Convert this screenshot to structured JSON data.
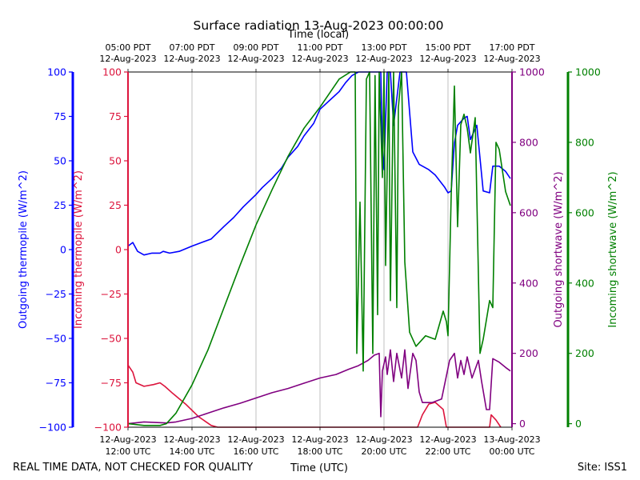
{
  "title": "Surface radiation 13-Aug-2023 00:00:00",
  "footer_left": "REAL TIME DATA, NOT CHECKED FOR QUALITY",
  "footer_right": "Site: ISS1",
  "colors": {
    "outgoing_thermopile": "#0000ff",
    "incoming_thermopile": "#dc143c",
    "outgoing_shortwave": "#800080",
    "incoming_shortwave": "#008000",
    "grid": "#b0b0b0"
  },
  "chart_data": {
    "type": "line",
    "title": "Surface radiation 13-Aug-2023 00:00:00",
    "xlabel": "Time (UTC)",
    "xlabel_top": "Time (local)",
    "xlim_hours_utc": [
      0,
      12
    ],
    "x_ticks_utc": [
      {
        "h": 0,
        "date": "12-Aug-2023",
        "time": "12:00 UTC"
      },
      {
        "h": 2,
        "date": "12-Aug-2023",
        "time": "14:00 UTC"
      },
      {
        "h": 4,
        "date": "12-Aug-2023",
        "time": "16:00 UTC"
      },
      {
        "h": 6,
        "date": "12-Aug-2023",
        "time": "18:00 UTC"
      },
      {
        "h": 8,
        "date": "12-Aug-2023",
        "time": "20:00 UTC"
      },
      {
        "h": 10,
        "date": "12-Aug-2023",
        "time": "22:00 UTC"
      },
      {
        "h": 12,
        "date": "13-Aug-2023",
        "time": "00:00 UTC"
      }
    ],
    "x_ticks_local": [
      {
        "h": 0,
        "time": "05:00 PDT",
        "date": "12-Aug-2023"
      },
      {
        "h": 2,
        "time": "07:00 PDT",
        "date": "12-Aug-2023"
      },
      {
        "h": 4,
        "time": "09:00 PDT",
        "date": "12-Aug-2023"
      },
      {
        "h": 6,
        "time": "11:00 PDT",
        "date": "12-Aug-2023"
      },
      {
        "h": 8,
        "time": "13:00 PDT",
        "date": "12-Aug-2023"
      },
      {
        "h": 10,
        "time": "15:00 PDT",
        "date": "12-Aug-2023"
      },
      {
        "h": 12,
        "time": "17:00 PDT",
        "date": "12-Aug-2023"
      }
    ],
    "axes": [
      {
        "id": "outgoing_thermopile",
        "label": "Outgoing thermopile (W/m^2)",
        "ylim": [
          -100,
          100
        ],
        "ticks": [
          -100,
          -75,
          -50,
          -25,
          0,
          25,
          50,
          75,
          100
        ]
      },
      {
        "id": "incoming_thermopile",
        "label": "Incoming thermopile (W/m^2)",
        "ylim": [
          -100,
          100
        ],
        "ticks": [
          -100,
          -75,
          -50,
          -25,
          0,
          25,
          50,
          75,
          100
        ]
      },
      {
        "id": "outgoing_shortwave",
        "label": "Outgoing shortwave (W/m^2)",
        "ylim": [
          -10,
          1000
        ],
        "ticks": [
          0,
          200,
          400,
          600,
          800,
          1000
        ]
      },
      {
        "id": "incoming_shortwave",
        "label": "Incoming shortwave (W/m^2)",
        "ylim": [
          -10,
          1000
        ],
        "ticks": [
          0,
          200,
          400,
          600,
          800,
          1000
        ]
      }
    ],
    "series": [
      {
        "name": "Outgoing thermopile",
        "axis": "outgoing_thermopile",
        "points": [
          [
            0,
            2
          ],
          [
            0.15,
            4
          ],
          [
            0.3,
            -1
          ],
          [
            0.5,
            -3
          ],
          [
            0.75,
            -2
          ],
          [
            1,
            -2
          ],
          [
            1.1,
            -1
          ],
          [
            1.3,
            -2
          ],
          [
            1.6,
            -1
          ],
          [
            2,
            2
          ],
          [
            2.3,
            4
          ],
          [
            2.6,
            6
          ],
          [
            3,
            13
          ],
          [
            3.3,
            18
          ],
          [
            3.6,
            24
          ],
          [
            4,
            31
          ],
          [
            4.2,
            35
          ],
          [
            4.5,
            40
          ],
          [
            4.8,
            46
          ],
          [
            5,
            52
          ],
          [
            5.3,
            58
          ],
          [
            5.5,
            64
          ],
          [
            5.8,
            71
          ],
          [
            6,
            79
          ],
          [
            6.3,
            84
          ],
          [
            6.6,
            89
          ],
          [
            6.8,
            94
          ],
          [
            7,
            98
          ],
          [
            7.2,
            100
          ],
          [
            7.5,
            100
          ],
          [
            7.9,
            100
          ],
          [
            7.95,
            57
          ],
          [
            8,
            45
          ],
          [
            8.1,
            100
          ],
          [
            8.2,
            100
          ],
          [
            8.3,
            70
          ],
          [
            8.5,
            100
          ],
          [
            8.7,
            100
          ],
          [
            8.9,
            55
          ],
          [
            9.1,
            48
          ],
          [
            9.4,
            45
          ],
          [
            9.6,
            42
          ],
          [
            9.9,
            35
          ],
          [
            10,
            32
          ],
          [
            10.1,
            33
          ],
          [
            10.2,
            60
          ],
          [
            10.3,
            70
          ],
          [
            10.5,
            74
          ],
          [
            10.6,
            75
          ],
          [
            10.7,
            62
          ],
          [
            10.9,
            70
          ],
          [
            11.1,
            33
          ],
          [
            11.3,
            32
          ],
          [
            11.4,
            47
          ],
          [
            11.6,
            47
          ],
          [
            11.8,
            44
          ],
          [
            11.95,
            40
          ]
        ]
      },
      {
        "name": "Incoming thermopile",
        "axis": "incoming_thermopile",
        "points": [
          [
            0,
            -65
          ],
          [
            0.15,
            -69
          ],
          [
            0.25,
            -75
          ],
          [
            0.5,
            -77
          ],
          [
            0.8,
            -76
          ],
          [
            1,
            -75
          ],
          [
            1.15,
            -77
          ],
          [
            1.4,
            -81
          ],
          [
            1.8,
            -87
          ],
          [
            2.2,
            -94
          ],
          [
            2.6,
            -99
          ],
          [
            2.8,
            -100
          ],
          [
            9.05,
            -100
          ],
          [
            9.2,
            -93
          ],
          [
            9.4,
            -87
          ],
          [
            9.6,
            -86
          ],
          [
            9.85,
            -90
          ],
          [
            9.95,
            -100
          ],
          [
            11.3,
            -100
          ],
          [
            11.35,
            -93
          ],
          [
            11.5,
            -96
          ],
          [
            11.65,
            -100
          ]
        ]
      },
      {
        "name": "Outgoing shortwave",
        "axis": "outgoing_shortwave",
        "points": [
          [
            0,
            0
          ],
          [
            0.5,
            5
          ],
          [
            1.2,
            2
          ],
          [
            1.5,
            5
          ],
          [
            2,
            15
          ],
          [
            2.5,
            30
          ],
          [
            3,
            45
          ],
          [
            3.5,
            58
          ],
          [
            4,
            73
          ],
          [
            4.5,
            88
          ],
          [
            5,
            100
          ],
          [
            5.5,
            115
          ],
          [
            6,
            130
          ],
          [
            6.5,
            140
          ],
          [
            6.9,
            155
          ],
          [
            7.2,
            165
          ],
          [
            7.4,
            175
          ],
          [
            7.5,
            180
          ],
          [
            7.7,
            195
          ],
          [
            7.85,
            200
          ],
          [
            7.9,
            20
          ],
          [
            7.95,
            150
          ],
          [
            8.05,
            190
          ],
          [
            8.1,
            140
          ],
          [
            8.2,
            210
          ],
          [
            8.3,
            120
          ],
          [
            8.4,
            200
          ],
          [
            8.55,
            130
          ],
          [
            8.65,
            210
          ],
          [
            8.75,
            100
          ],
          [
            8.9,
            200
          ],
          [
            9,
            180
          ],
          [
            9.1,
            90
          ],
          [
            9.2,
            60
          ],
          [
            9.5,
            60
          ],
          [
            9.8,
            70
          ],
          [
            10.05,
            180
          ],
          [
            10.2,
            200
          ],
          [
            10.3,
            130
          ],
          [
            10.4,
            180
          ],
          [
            10.5,
            140
          ],
          [
            10.6,
            190
          ],
          [
            10.75,
            130
          ],
          [
            10.95,
            180
          ],
          [
            11.05,
            120
          ],
          [
            11.2,
            40
          ],
          [
            11.3,
            40
          ],
          [
            11.4,
            185
          ],
          [
            11.6,
            175
          ],
          [
            11.8,
            160
          ],
          [
            11.95,
            150
          ]
        ]
      },
      {
        "name": "Incoming shortwave",
        "axis": "incoming_shortwave",
        "points": [
          [
            0,
            0
          ],
          [
            0.5,
            -5
          ],
          [
            1,
            -5
          ],
          [
            1.2,
            0
          ],
          [
            1.5,
            30
          ],
          [
            2,
            110
          ],
          [
            2.5,
            210
          ],
          [
            3,
            330
          ],
          [
            3.5,
            450
          ],
          [
            4,
            565
          ],
          [
            4.5,
            665
          ],
          [
            5,
            760
          ],
          [
            5.5,
            840
          ],
          [
            6,
            900
          ],
          [
            6.6,
            980
          ],
          [
            6.95,
            1000
          ],
          [
            7.1,
            1000
          ],
          [
            7.15,
            200
          ],
          [
            7.25,
            630
          ],
          [
            7.35,
            150
          ],
          [
            7.45,
            980
          ],
          [
            7.55,
            1000
          ],
          [
            7.65,
            200
          ],
          [
            7.72,
            990
          ],
          [
            7.8,
            310
          ],
          [
            7.85,
            1000
          ],
          [
            7.95,
            700
          ],
          [
            8,
            1000
          ],
          [
            8.05,
            450
          ],
          [
            8.15,
            1000
          ],
          [
            8.2,
            350
          ],
          [
            8.3,
            1000
          ],
          [
            8.4,
            330
          ],
          [
            8.45,
            900
          ],
          [
            8.55,
            1000
          ],
          [
            8.65,
            460
          ],
          [
            8.8,
            260
          ],
          [
            9,
            220
          ],
          [
            9.3,
            250
          ],
          [
            9.6,
            240
          ],
          [
            9.85,
            320
          ],
          [
            9.95,
            290
          ],
          [
            10.0,
            250
          ],
          [
            10.1,
            650
          ],
          [
            10.2,
            960
          ],
          [
            10.3,
            560
          ],
          [
            10.4,
            850
          ],
          [
            10.5,
            880
          ],
          [
            10.6,
            840
          ],
          [
            10.7,
            770
          ],
          [
            10.85,
            870
          ],
          [
            11.0,
            200
          ],
          [
            11.1,
            240
          ],
          [
            11.3,
            350
          ],
          [
            11.4,
            330
          ],
          [
            11.5,
            800
          ],
          [
            11.6,
            780
          ],
          [
            11.8,
            660
          ],
          [
            11.95,
            620
          ]
        ]
      }
    ]
  }
}
